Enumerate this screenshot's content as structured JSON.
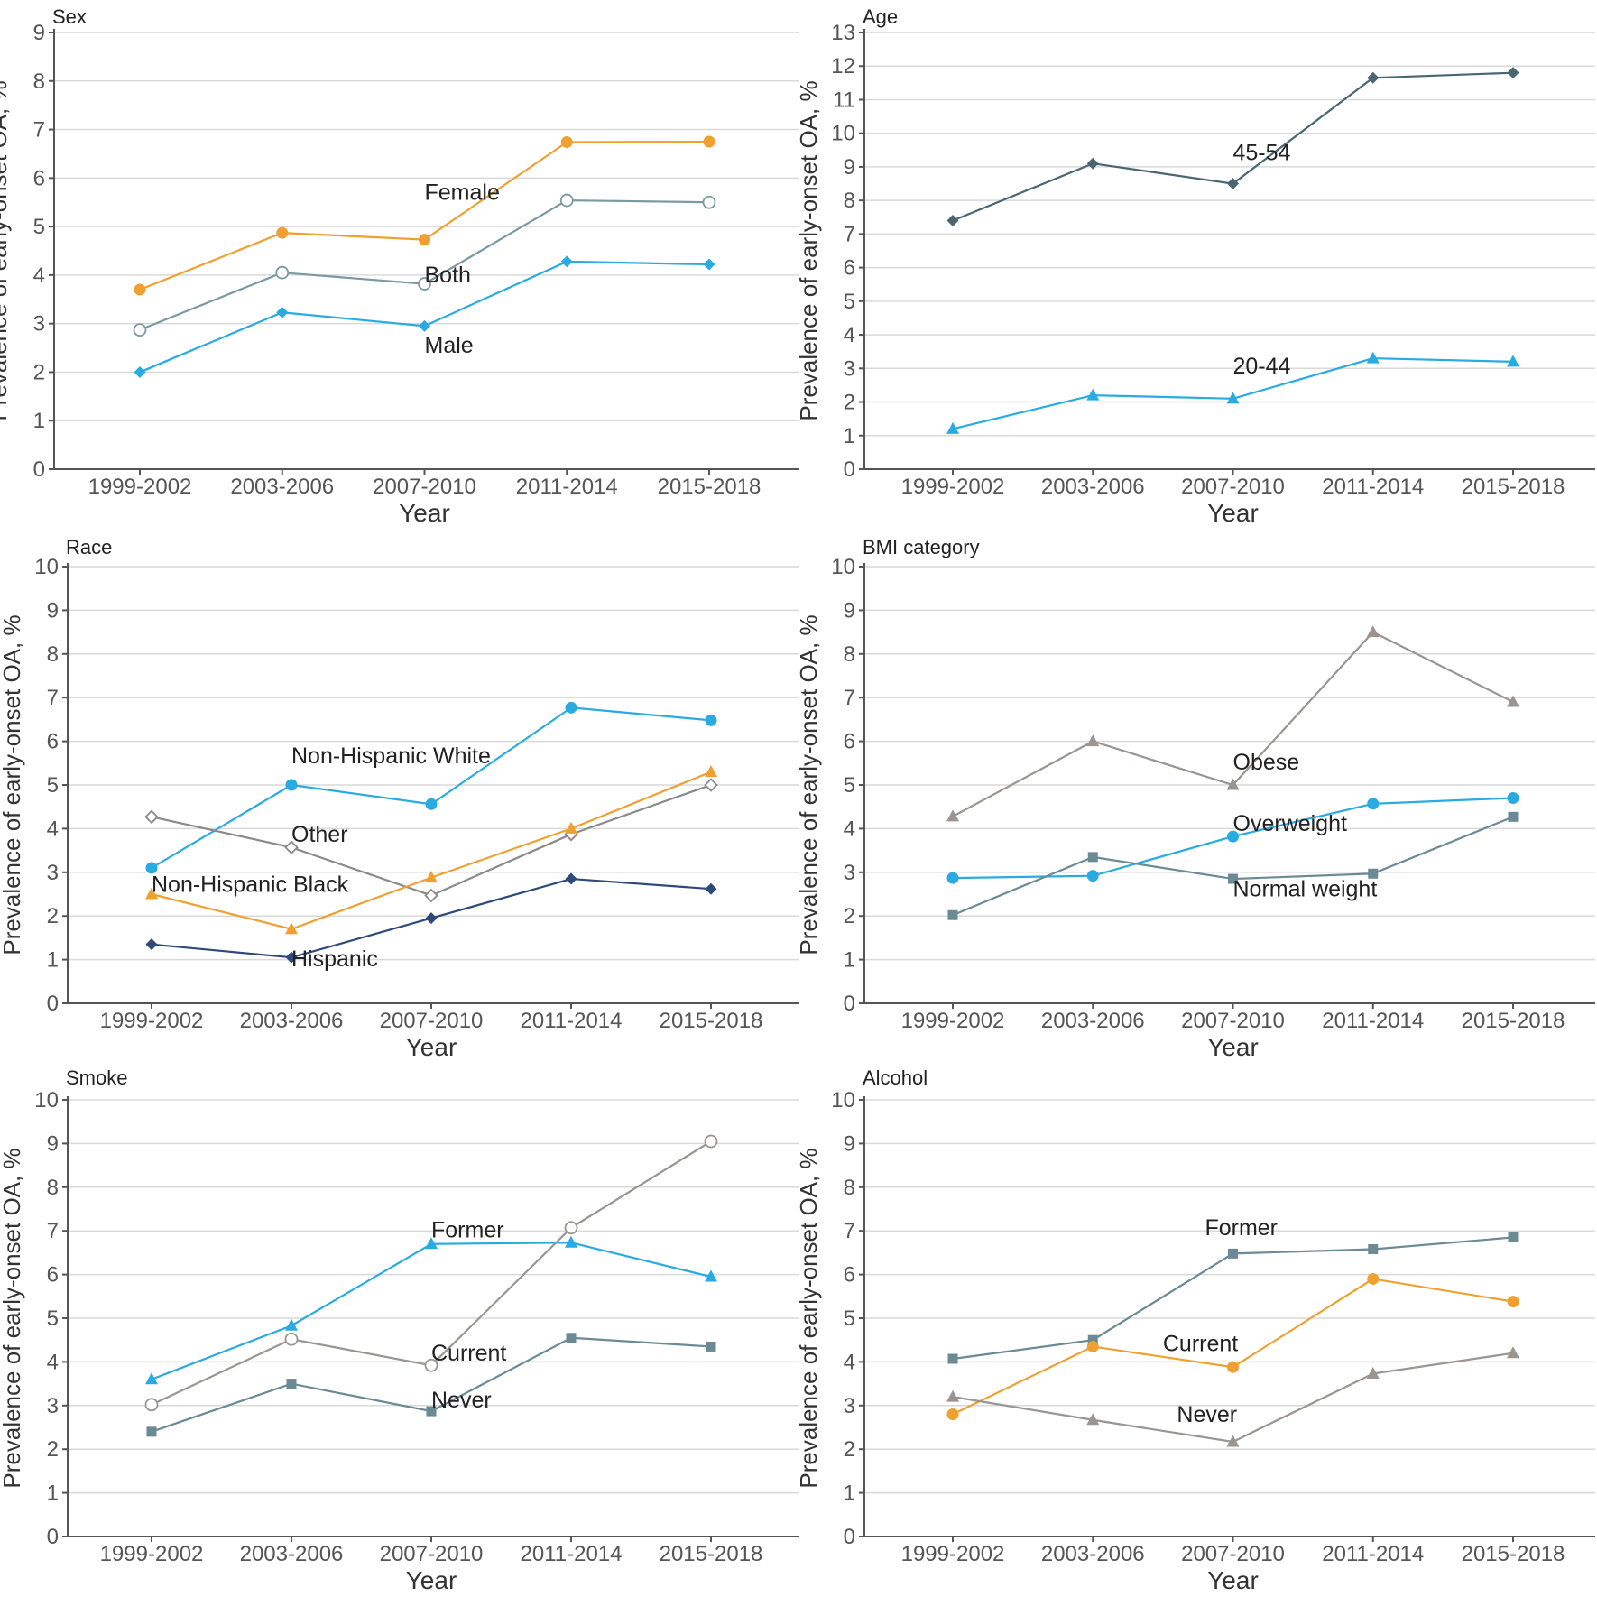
{
  "chart_data": [
    {
      "type": "line",
      "title": "Sex",
      "xlabel": "Year",
      "ylabel": "Prevalence of early-onset OA, %",
      "categories": [
        "1999-2002",
        "2003-2006",
        "2007-2010",
        "2011-2014",
        "2015-2018"
      ],
      "ylim": [
        0,
        9
      ],
      "yticks": [
        0,
        1,
        2,
        3,
        4,
        5,
        6,
        7,
        8,
        9
      ],
      "series": [
        {
          "name": "Female",
          "color": "#F0A030",
          "marker": "circle",
          "values": [
            3.7,
            4.87,
            4.73,
            6.74,
            6.75
          ],
          "label_x": 2.0,
          "label_y": 5.55
        },
        {
          "name": "Both",
          "color": "#7A9AA0",
          "marker": "open-circle",
          "values": [
            2.87,
            4.05,
            3.82,
            5.54,
            5.5
          ],
          "label_x": 2.0,
          "label_y": 3.85
        },
        {
          "name": "Male",
          "color": "#29ABE2",
          "marker": "diamond",
          "values": [
            2.0,
            3.23,
            2.95,
            4.28,
            4.22
          ],
          "label_x": 2.0,
          "label_y": 2.4
        }
      ]
    },
    {
      "type": "line",
      "title": "Age",
      "xlabel": "Year",
      "ylabel": "Prevalence of early-onset OA, %",
      "categories": [
        "1999-2002",
        "2003-2006",
        "2007-2010",
        "2011-2014",
        "2015-2018"
      ],
      "ylim": [
        0,
        13
      ],
      "yticks": [
        0,
        1,
        2,
        3,
        4,
        5,
        6,
        7,
        8,
        9,
        10,
        11,
        12,
        13
      ],
      "series": [
        {
          "name": "45-54",
          "color": "#4A6670",
          "marker": "diamond",
          "values": [
            7.4,
            9.1,
            8.5,
            11.65,
            11.8
          ],
          "label_x": 2.0,
          "label_y": 9.2
        },
        {
          "name": "20-44",
          "color": "#29ABE2",
          "marker": "triangle",
          "values": [
            1.2,
            2.2,
            2.1,
            3.3,
            3.2
          ],
          "label_x": 2.0,
          "label_y": 2.85
        }
      ]
    },
    {
      "type": "line",
      "title": "Race",
      "xlabel": "Year",
      "ylabel": "Prevalence of early-onset OA, %",
      "categories": [
        "1999-2002",
        "2003-2006",
        "2007-2010",
        "2011-2014",
        "2015-2018"
      ],
      "ylim": [
        0,
        10
      ],
      "yticks": [
        0,
        1,
        2,
        3,
        4,
        5,
        6,
        7,
        8,
        9,
        10
      ],
      "series": [
        {
          "name": "Non-Hispanic White",
          "color": "#29ABE2",
          "marker": "circle",
          "values": [
            3.1,
            5.0,
            4.56,
            6.77,
            6.48
          ],
          "label_x": 1.0,
          "label_y": 5.5
        },
        {
          "name": "Other",
          "color": "#8A8A8A",
          "marker": "open-diamond",
          "values": [
            4.27,
            3.57,
            2.47,
            3.87,
            5.0
          ],
          "label_x": 1.0,
          "label_y": 3.7
        },
        {
          "name": "Non-Hispanic Black",
          "color": "#F0A030",
          "marker": "triangle",
          "values": [
            2.5,
            1.7,
            2.88,
            4.0,
            5.3
          ],
          "label_x": 0.0,
          "label_y": 2.55
        },
        {
          "name": "Hispanic",
          "color": "#2E4A7A",
          "marker": "diamond",
          "values": [
            1.35,
            1.05,
            1.95,
            2.85,
            2.62
          ],
          "label_x": 1.0,
          "label_y": 0.85
        }
      ]
    },
    {
      "type": "line",
      "title": "BMI category",
      "xlabel": "Year",
      "ylabel": "Prevalence of early-onset OA, %",
      "categories": [
        "1999-2002",
        "2003-2006",
        "2007-2010",
        "2011-2014",
        "2015-2018"
      ],
      "ylim": [
        0,
        10
      ],
      "yticks": [
        0,
        1,
        2,
        3,
        4,
        5,
        6,
        7,
        8,
        9,
        10
      ],
      "series": [
        {
          "name": "Obese",
          "color": "#9A9590",
          "marker": "triangle",
          "values": [
            4.28,
            6.0,
            5.0,
            8.5,
            6.9
          ],
          "label_x": 2.0,
          "label_y": 5.35
        },
        {
          "name": "Overweight",
          "color": "#29ABE2",
          "marker": "circle",
          "values": [
            2.87,
            2.92,
            3.82,
            4.57,
            4.7
          ],
          "label_x": 2.0,
          "label_y": 3.95
        },
        {
          "name": "Normal weight",
          "color": "#6A8A94",
          "marker": "square",
          "values": [
            2.02,
            3.35,
            2.85,
            2.97,
            4.27
          ],
          "label_x": 2.0,
          "label_y": 2.45
        }
      ]
    },
    {
      "type": "line",
      "title": "Smoke",
      "xlabel": "Year",
      "ylabel": "Prevalence of early-onset OA, %",
      "categories": [
        "1999-2002",
        "2003-2006",
        "2007-2010",
        "2011-2014",
        "2015-2018"
      ],
      "ylim": [
        0,
        10
      ],
      "yticks": [
        0,
        1,
        2,
        3,
        4,
        5,
        6,
        7,
        8,
        9,
        10
      ],
      "series": [
        {
          "name": "Former",
          "color": "#29ABE2",
          "marker": "triangle",
          "values": [
            3.6,
            4.83,
            6.7,
            6.73,
            5.95
          ],
          "label_x": 2.0,
          "label_y": 6.85
        },
        {
          "name": "Current",
          "color": "#9A9590",
          "marker": "open-circle",
          "values": [
            3.02,
            4.52,
            3.92,
            7.07,
            9.05
          ],
          "label_x": 2.0,
          "label_y": 4.03
        },
        {
          "name": "Never",
          "color": "#6A8A94",
          "marker": "square",
          "values": [
            2.4,
            3.5,
            2.87,
            4.55,
            4.35
          ],
          "label_x": 2.0,
          "label_y": 2.95
        }
      ]
    },
    {
      "type": "line",
      "title": "Alcohol",
      "xlabel": "Year",
      "ylabel": "Prevalence of early-onset OA, %",
      "categories": [
        "1999-2002",
        "2003-2006",
        "2007-2010",
        "2011-2014",
        "2015-2018"
      ],
      "ylim": [
        0,
        10
      ],
      "yticks": [
        0,
        1,
        2,
        3,
        4,
        5,
        6,
        7,
        8,
        9,
        10
      ],
      "series": [
        {
          "name": "Former",
          "color": "#6A8A94",
          "marker": "square",
          "values": [
            4.07,
            4.5,
            6.48,
            6.58,
            6.85
          ],
          "label_x": 1.8,
          "label_y": 6.9
        },
        {
          "name": "Current",
          "color": "#F0A030",
          "marker": "circle",
          "values": [
            2.8,
            4.35,
            3.88,
            5.9,
            5.38
          ],
          "label_x": 1.5,
          "label_y": 4.25
        },
        {
          "name": "Never",
          "color": "#9A9590",
          "marker": "triangle",
          "values": [
            3.2,
            2.67,
            2.17,
            3.73,
            4.2
          ],
          "label_x": 1.6,
          "label_y": 2.62
        }
      ]
    }
  ]
}
